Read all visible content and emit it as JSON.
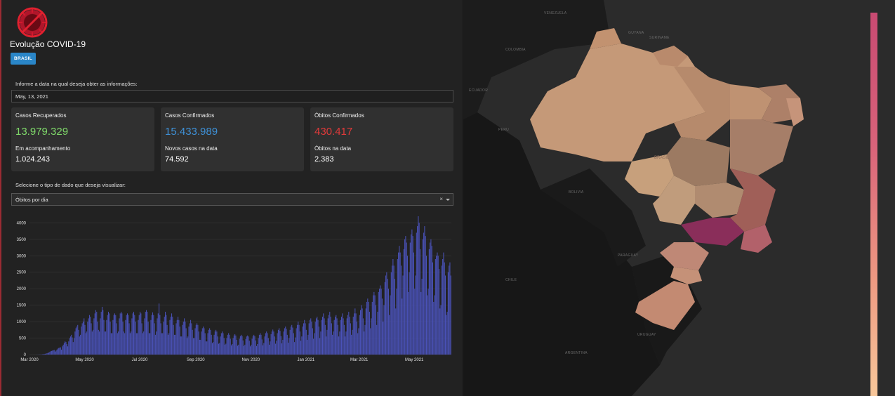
{
  "header": {
    "title": "Evolução COVID-19",
    "region_button": "BRASIL"
  },
  "date_section": {
    "label": "Informe a data na qual deseja obter as informações:",
    "date_value": "May, 13, 2021"
  },
  "cards": [
    {
      "title": "Casos Recuperados",
      "value": "13.979.329",
      "value_color": "#7fd96a",
      "sub_label": "Em acompanhamento",
      "sub_value": "1.024.243"
    },
    {
      "title": "Casos Confirmados",
      "value": "15.433.989",
      "value_color": "#3e90d6",
      "sub_label": "Novos casos na data",
      "sub_value": "74.592"
    },
    {
      "title": "Óbitos Confirmados",
      "value": "430.417",
      "value_color": "#e03a3a",
      "sub_label": "Óbitos na data",
      "sub_value": "2.383"
    }
  ],
  "data_type": {
    "label": "Selecione o tipo de dado que deseja visualizar:",
    "selected": "Óbitos por dia",
    "clear_icon": "close-icon",
    "dropdown_icon": "chevron-down-icon"
  },
  "chart_data": {
    "type": "bar",
    "bar_color": "#4a52b8",
    "ylim": [
      0,
      4200
    ],
    "yticks": [
      0,
      500,
      1000,
      1500,
      2000,
      2500,
      3000,
      3500,
      4000
    ],
    "ytick_labels": [
      "0",
      "500",
      "1000",
      "1500",
      "2000",
      "2500",
      "3000",
      "3500",
      "4000"
    ],
    "xtick_labels": [
      "Mar 2020",
      "May 2020",
      "Jul 2020",
      "Sep 2020",
      "Nov 2020",
      "Jan 2021",
      "Mar 2021",
      "May 2021"
    ],
    "xtick_positions": [
      0,
      61,
      122,
      184,
      245,
      306,
      365,
      426
    ],
    "period": "daily, Mar 2020 – May 13 2021",
    "weekly_values": [
      [
        0,
        0,
        0,
        0,
        0,
        0,
        0
      ],
      [
        1,
        2,
        2,
        3,
        4,
        5,
        6
      ],
      [
        10,
        15,
        20,
        25,
        30,
        40,
        50
      ],
      [
        60,
        80,
        100,
        110,
        120,
        130,
        140
      ],
      [
        90,
        120,
        150,
        180,
        200,
        210,
        220
      ],
      [
        150,
        250,
        300,
        350,
        400,
        380,
        320
      ],
      [
        250,
        400,
        500,
        550,
        600,
        520,
        380
      ],
      [
        500,
        700,
        800,
        850,
        900,
        750,
        550
      ],
      [
        600,
        850,
        950,
        1000,
        1100,
        900,
        650
      ],
      [
        700,
        1000,
        1100,
        1200,
        1150,
        950,
        700
      ],
      [
        750,
        1100,
        1250,
        1350,
        1300,
        1000,
        750
      ],
      [
        700,
        1100,
        1300,
        1450,
        1350,
        1050,
        700
      ],
      [
        700,
        1050,
        1200,
        1300,
        1250,
        1000,
        650
      ],
      [
        650,
        1050,
        1200,
        1250,
        1200,
        950,
        650
      ],
      [
        700,
        1100,
        1250,
        1300,
        1250,
        1000,
        700
      ],
      [
        650,
        1050,
        1200,
        1250,
        1200,
        950,
        650
      ],
      [
        700,
        1100,
        1250,
        1300,
        1200,
        1000,
        650
      ],
      [
        650,
        1050,
        1200,
        1300,
        1250,
        950,
        650
      ],
      [
        700,
        1100,
        1300,
        1350,
        1300,
        1000,
        650
      ],
      [
        650,
        1050,
        1200,
        1280,
        1200,
        950,
        600
      ],
      [
        700,
        1100,
        1250,
        1550,
        1200,
        950,
        650
      ],
      [
        650,
        1000,
        1150,
        1300,
        1200,
        900,
        600
      ],
      [
        650,
        1050,
        1150,
        1250,
        1150,
        900,
        600
      ],
      [
        600,
        950,
        1050,
        1150,
        1050,
        850,
        550
      ],
      [
        550,
        900,
        1000,
        1100,
        1000,
        800,
        500
      ],
      [
        550,
        850,
        950,
        1050,
        950,
        750,
        500
      ],
      [
        500,
        800,
        900,
        950,
        900,
        700,
        450
      ],
      [
        450,
        700,
        800,
        850,
        800,
        650,
        400
      ],
      [
        400,
        650,
        750,
        800,
        750,
        600,
        350
      ],
      [
        380,
        600,
        700,
        750,
        700,
        550,
        330
      ],
      [
        350,
        550,
        650,
        700,
        650,
        500,
        300
      ],
      [
        330,
        500,
        600,
        650,
        600,
        480,
        280
      ],
      [
        320,
        500,
        580,
        620,
        580,
        450,
        270
      ],
      [
        300,
        480,
        560,
        600,
        560,
        430,
        260
      ],
      [
        300,
        470,
        550,
        580,
        550,
        420,
        250
      ],
      [
        300,
        480,
        560,
        600,
        560,
        430,
        260
      ],
      [
        320,
        500,
        600,
        650,
        600,
        460,
        280
      ],
      [
        350,
        550,
        650,
        700,
        650,
        500,
        300
      ],
      [
        400,
        620,
        700,
        760,
        700,
        550,
        330
      ],
      [
        420,
        650,
        750,
        800,
        720,
        560,
        340
      ],
      [
        450,
        700,
        800,
        850,
        780,
        600,
        360
      ],
      [
        500,
        750,
        850,
        900,
        820,
        650,
        380
      ],
      [
        520,
        800,
        900,
        1000,
        900,
        700,
        420
      ],
      [
        550,
        850,
        950,
        1050,
        950,
        750,
        450
      ],
      [
        600,
        950,
        1050,
        1100,
        1000,
        800,
        480
      ],
      [
        650,
        1000,
        1100,
        1150,
        1050,
        850,
        500
      ],
      [
        700,
        1050,
        1150,
        1250,
        1100,
        900,
        550
      ],
      [
        750,
        1100,
        1200,
        1300,
        1150,
        950,
        600
      ],
      [
        700,
        1050,
        1150,
        1200,
        1100,
        900,
        550
      ],
      [
        700,
        1050,
        1150,
        1250,
        1100,
        900,
        550
      ],
      [
        700,
        1100,
        1200,
        1300,
        1150,
        950,
        600
      ],
      [
        750,
        1150,
        1250,
        1400,
        1250,
        1000,
        650
      ],
      [
        800,
        1200,
        1350,
        1500,
        1400,
        1100,
        700
      ],
      [
        900,
        1400,
        1600,
        1700,
        1600,
        1300,
        800
      ],
      [
        1100,
        1600,
        1800,
        1900,
        1800,
        1500,
        900
      ],
      [
        1300,
        1900,
        2000,
        2100,
        2000,
        1700,
        1000
      ],
      [
        1500,
        2200,
        2400,
        2500,
        2300,
        2000,
        1200
      ],
      [
        1800,
        2500,
        2700,
        2900,
        2700,
        2300,
        1400
      ],
      [
        2000,
        2900,
        3100,
        3300,
        3100,
        2700,
        1700
      ],
      [
        2400,
        3200,
        3500,
        3600,
        3400,
        3000,
        1900
      ],
      [
        2500,
        3400,
        3650,
        3800,
        3600,
        3100,
        2000
      ],
      [
        2400,
        3700,
        3900,
        4200,
        4000,
        3200,
        1900
      ],
      [
        2300,
        3500,
        3700,
        3900,
        3600,
        3000,
        1800
      ],
      [
        2000,
        3200,
        3400,
        3500,
        3300,
        2800,
        1600
      ],
      [
        1800,
        2900,
        3000,
        3100,
        3000,
        2600,
        1400
      ],
      [
        1500,
        2700,
        2900,
        3100,
        2800,
        2400,
        1200
      ],
      [
        1300,
        2500,
        2700,
        2800,
        2400
      ]
    ]
  },
  "map": {
    "colorscale": [
      "#f3c49a",
      "#e8a582",
      "#d97d72",
      "#bd4f6c",
      "#a23766",
      "#8a2260"
    ],
    "country_labels": [
      "VENEZUELA",
      "COLOMBIA",
      "ECUADOR",
      "PERU",
      "BRASIL",
      "BOLIVIA",
      "PARAGUAY",
      "URUGUAY",
      "ARGENTINA",
      "CHILE",
      "GUYANA",
      "SURINAME"
    ]
  }
}
